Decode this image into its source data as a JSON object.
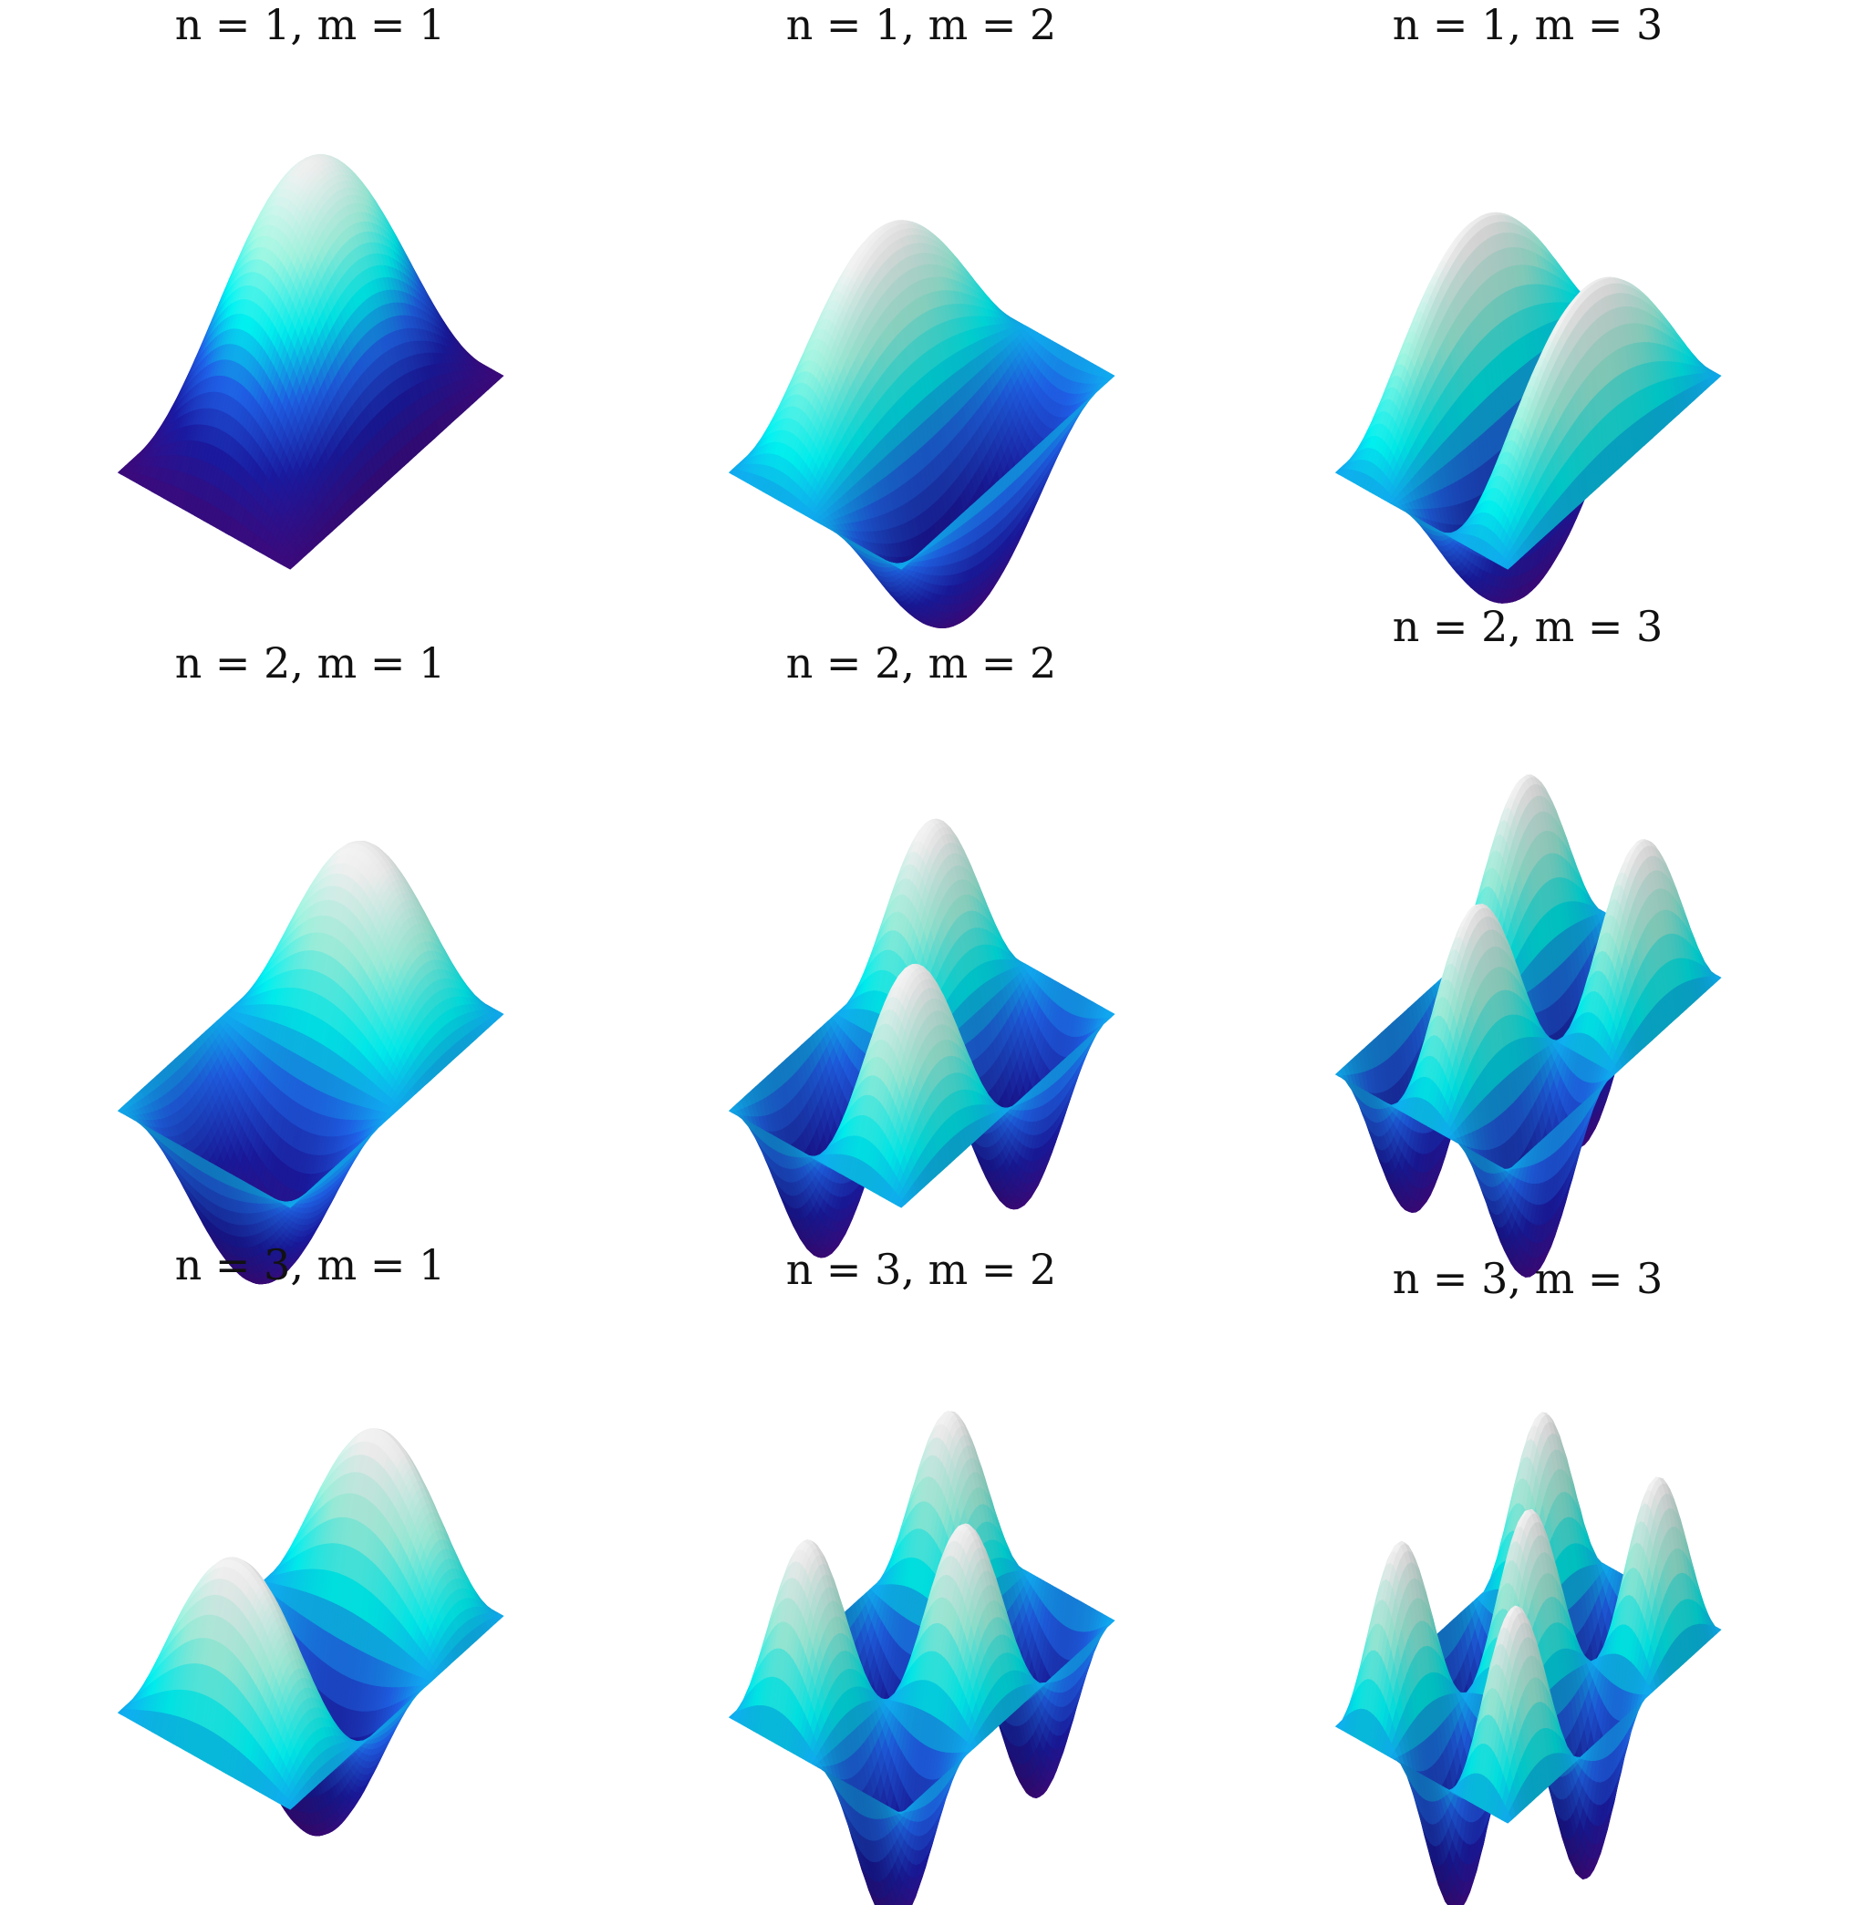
{
  "chart_data": [
    {
      "type": "surface",
      "n": 1,
      "m": 1,
      "title": "n = 1, m = 1",
      "function": "sin(n*pi*x)*sin(m*pi*y)",
      "domain": [
        [
          0,
          1
        ],
        [
          0,
          1
        ]
      ],
      "colormap": [
        "#3a0a7a",
        "#1a1aa0",
        "#1f5fe6",
        "#00f0f0",
        "#9ef5e0",
        "#eeeeee"
      ]
    },
    {
      "type": "surface",
      "n": 1,
      "m": 2,
      "title": "n = 1, m = 2",
      "function": "sin(n*pi*x)*sin(m*pi*y)",
      "domain": [
        [
          0,
          1
        ],
        [
          0,
          1
        ]
      ],
      "colormap": [
        "#3a0a7a",
        "#1a1aa0",
        "#1f5fe6",
        "#00f0f0",
        "#9ef5e0",
        "#eeeeee"
      ]
    },
    {
      "type": "surface",
      "n": 1,
      "m": 3,
      "title": "n = 1, m = 3",
      "function": "sin(n*pi*x)*sin(m*pi*y)",
      "domain": [
        [
          0,
          1
        ],
        [
          0,
          1
        ]
      ],
      "colormap": [
        "#3a0a7a",
        "#1a1aa0",
        "#1f5fe6",
        "#00f0f0",
        "#9ef5e0",
        "#eeeeee"
      ]
    },
    {
      "type": "surface",
      "n": 2,
      "m": 1,
      "title": "n = 2, m = 1",
      "function": "sin(n*pi*x)*sin(m*pi*y)",
      "domain": [
        [
          0,
          1
        ],
        [
          0,
          1
        ]
      ],
      "colormap": [
        "#3a0a7a",
        "#1a1aa0",
        "#1f5fe6",
        "#00f0f0",
        "#9ef5e0",
        "#eeeeee"
      ]
    },
    {
      "type": "surface",
      "n": 2,
      "m": 2,
      "title": "n = 2, m = 2",
      "function": "sin(n*pi*x)*sin(m*pi*y)",
      "domain": [
        [
          0,
          1
        ],
        [
          0,
          1
        ]
      ],
      "colormap": [
        "#3a0a7a",
        "#1a1aa0",
        "#1f5fe6",
        "#00f0f0",
        "#9ef5e0",
        "#eeeeee"
      ]
    },
    {
      "type": "surface",
      "n": 2,
      "m": 3,
      "title": "n = 2, m = 3",
      "function": "sin(n*pi*x)*sin(m*pi*y)",
      "domain": [
        [
          0,
          1
        ],
        [
          0,
          1
        ]
      ],
      "colormap": [
        "#3a0a7a",
        "#1a1aa0",
        "#1f5fe6",
        "#00f0f0",
        "#9ef5e0",
        "#eeeeee"
      ]
    },
    {
      "type": "surface",
      "n": 3,
      "m": 1,
      "title": "n = 3, m = 1",
      "function": "sin(n*pi*x)*sin(m*pi*y)",
      "domain": [
        [
          0,
          1
        ],
        [
          0,
          1
        ]
      ],
      "colormap": [
        "#3a0a7a",
        "#1a1aa0",
        "#1f5fe6",
        "#00f0f0",
        "#9ef5e0",
        "#eeeeee"
      ]
    },
    {
      "type": "surface",
      "n": 3,
      "m": 2,
      "title": "n = 3, m = 2",
      "function": "sin(n*pi*x)*sin(m*pi*y)",
      "domain": [
        [
          0,
          1
        ],
        [
          0,
          1
        ]
      ],
      "colormap": [
        "#3a0a7a",
        "#1a1aa0",
        "#1f5fe6",
        "#00f0f0",
        "#9ef5e0",
        "#eeeeee"
      ]
    },
    {
      "type": "surface",
      "n": 3,
      "m": 3,
      "title": "n = 3, m = 3",
      "function": "sin(n*pi*x)*sin(m*pi*y)",
      "domain": [
        [
          0,
          1
        ],
        [
          0,
          1
        ]
      ],
      "colormap": [
        "#3a0a7a",
        "#1a1aa0",
        "#1f5fe6",
        "#00f0f0",
        "#9ef5e0",
        "#eeeeee"
      ]
    }
  ]
}
